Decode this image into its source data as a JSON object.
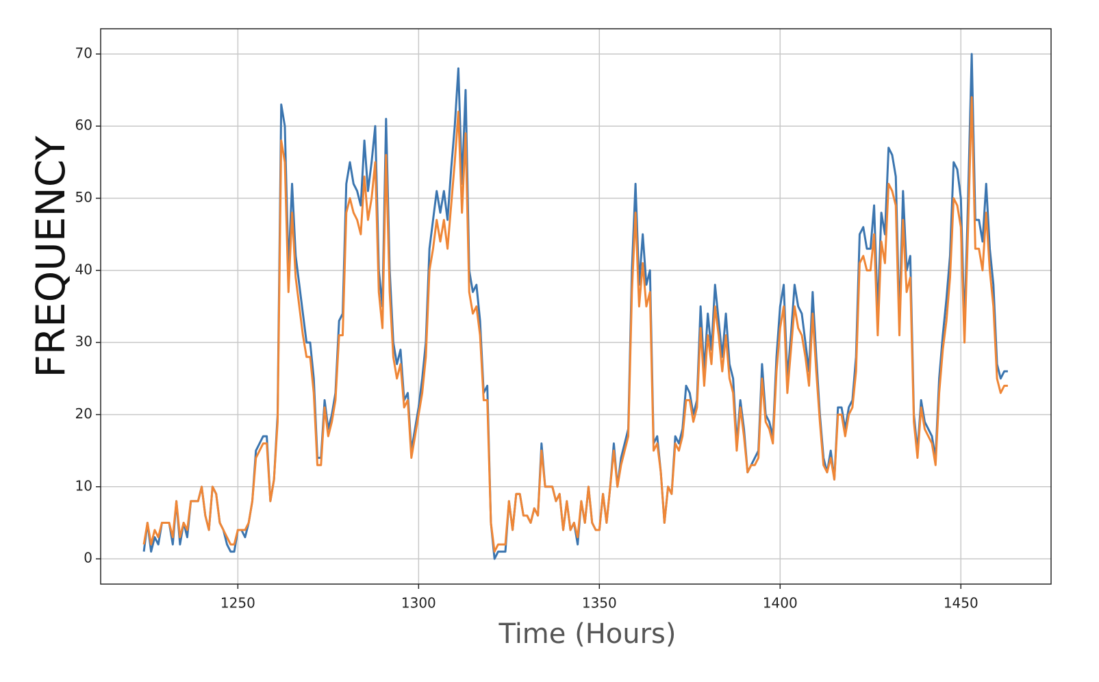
{
  "chart_data": {
    "type": "line",
    "xlabel": "Time (Hours)",
    "ylabel": "FREQUENCY",
    "x": [
      1224,
      1225,
      1226,
      1227,
      1228,
      1229,
      1230,
      1231,
      1232,
      1233,
      1234,
      1235,
      1236,
      1237,
      1238,
      1239,
      1240,
      1241,
      1242,
      1243,
      1244,
      1245,
      1246,
      1247,
      1248,
      1249,
      1250,
      1251,
      1252,
      1253,
      1254,
      1255,
      1256,
      1257,
      1258,
      1259,
      1260,
      1261,
      1262,
      1263,
      1264,
      1265,
      1266,
      1267,
      1268,
      1269,
      1270,
      1271,
      1272,
      1273,
      1274,
      1275,
      1276,
      1277,
      1278,
      1279,
      1280,
      1281,
      1282,
      1283,
      1284,
      1285,
      1286,
      1287,
      1288,
      1289,
      1290,
      1291,
      1292,
      1293,
      1294,
      1295,
      1296,
      1297,
      1298,
      1299,
      1300,
      1301,
      1302,
      1303,
      1304,
      1305,
      1306,
      1307,
      1308,
      1309,
      1310,
      1311,
      1312,
      1313,
      1314,
      1315,
      1316,
      1317,
      1318,
      1319,
      1320,
      1321,
      1322,
      1323,
      1324,
      1325,
      1326,
      1327,
      1328,
      1329,
      1330,
      1331,
      1332,
      1333,
      1334,
      1335,
      1336,
      1337,
      1338,
      1339,
      1340,
      1341,
      1342,
      1343,
      1344,
      1345,
      1346,
      1347,
      1348,
      1349,
      1350,
      1351,
      1352,
      1353,
      1354,
      1355,
      1356,
      1357,
      1358,
      1359,
      1360,
      1361,
      1362,
      1363,
      1364,
      1365,
      1366,
      1367,
      1368,
      1369,
      1370,
      1371,
      1372,
      1373,
      1374,
      1375,
      1376,
      1377,
      1378,
      1379,
      1380,
      1381,
      1382,
      1383,
      1384,
      1385,
      1386,
      1387,
      1388,
      1389,
      1390,
      1391,
      1392,
      1393,
      1394,
      1395,
      1396,
      1397,
      1398,
      1399,
      1400,
      1401,
      1402,
      1403,
      1404,
      1405,
      1406,
      1407,
      1408,
      1409,
      1410,
      1411,
      1412,
      1413,
      1414,
      1415,
      1416,
      1417,
      1418,
      1419,
      1420,
      1421,
      1422,
      1423,
      1424,
      1425,
      1426,
      1427,
      1428,
      1429,
      1430,
      1431,
      1432,
      1433,
      1434,
      1435,
      1436,
      1437,
      1438,
      1439,
      1440,
      1441,
      1442,
      1443,
      1444,
      1445,
      1446,
      1447,
      1448,
      1449,
      1450,
      1451,
      1452,
      1453,
      1454,
      1455,
      1456,
      1457,
      1458,
      1459,
      1460,
      1461,
      1462,
      1463
    ],
    "series": [
      {
        "color": "#3b75af",
        "values": [
          1,
          5,
          1,
          3,
          2,
          5,
          5,
          5,
          2,
          8,
          2,
          5,
          3,
          8,
          8,
          8,
          10,
          6,
          4,
          10,
          9,
          5,
          4,
          2,
          1,
          1,
          4,
          4,
          3,
          5,
          8,
          15,
          16,
          17,
          17,
          8,
          11,
          20,
          63,
          60,
          40,
          52,
          42,
          38,
          34,
          30,
          30,
          25,
          14,
          14,
          22,
          18,
          20,
          23,
          33,
          34,
          52,
          55,
          52,
          51,
          49,
          58,
          51,
          55,
          60,
          40,
          35,
          61,
          40,
          30,
          27,
          29,
          22,
          23,
          15,
          18,
          21,
          25,
          30,
          43,
          47,
          51,
          48,
          51,
          47,
          54,
          60,
          68,
          52,
          65,
          40,
          37,
          38,
          33,
          23,
          24,
          5,
          0,
          1,
          1,
          1,
          8,
          4,
          9,
          9,
          6,
          6,
          5,
          7,
          6,
          16,
          10,
          10,
          10,
          8,
          9,
          4,
          8,
          4,
          5,
          2,
          8,
          5,
          10,
          5,
          4,
          4,
          9,
          5,
          10,
          16,
          10,
          14,
          16,
          18,
          40,
          52,
          38,
          45,
          38,
          40,
          16,
          17,
          12,
          5,
          10,
          9,
          17,
          16,
          18,
          24,
          23,
          20,
          22,
          35,
          26,
          34,
          29,
          38,
          33,
          28,
          34,
          27,
          25,
          16,
          22,
          18,
          12,
          13,
          14,
          15,
          27,
          20,
          19,
          17,
          28,
          35,
          38,
          25,
          31,
          38,
          35,
          34,
          30,
          26,
          37,
          28,
          20,
          14,
          12,
          15,
          11,
          21,
          21,
          18,
          21,
          22,
          28,
          45,
          46,
          43,
          43,
          49,
          34,
          48,
          45,
          57,
          56,
          53,
          33,
          51,
          40,
          42,
          20,
          15,
          22,
          19,
          18,
          17,
          14,
          25,
          31,
          36,
          42,
          55,
          54,
          50,
          32,
          50,
          70,
          47,
          47,
          44,
          52,
          43,
          38,
          27,
          25,
          26,
          26
        ]
      },
      {
        "color": "#ef8636",
        "values": [
          2,
          5,
          2,
          4,
          3,
          5,
          5,
          5,
          3,
          8,
          3,
          5,
          4,
          8,
          8,
          8,
          10,
          6,
          4,
          10,
          9,
          5,
          4,
          3,
          2,
          2,
          4,
          4,
          4,
          5,
          8,
          14,
          15,
          16,
          16,
          8,
          11,
          19,
          58,
          55,
          37,
          48,
          39,
          35,
          31,
          28,
          28,
          23,
          13,
          13,
          21,
          17,
          19,
          22,
          31,
          31,
          48,
          50,
          48,
          47,
          45,
          53,
          47,
          50,
          55,
          37,
          32,
          56,
          37,
          28,
          25,
          27,
          21,
          22,
          14,
          17,
          20,
          23,
          28,
          40,
          43,
          47,
          44,
          47,
          43,
          49,
          55,
          62,
          48,
          59,
          37,
          34,
          35,
          31,
          22,
          22,
          5,
          1,
          2,
          2,
          2,
          8,
          4,
          9,
          9,
          6,
          6,
          5,
          7,
          6,
          15,
          10,
          10,
          10,
          8,
          9,
          4,
          8,
          4,
          5,
          3,
          8,
          5,
          10,
          5,
          4,
          4,
          9,
          5,
          10,
          15,
          10,
          13,
          15,
          17,
          37,
          48,
          35,
          41,
          35,
          37,
          15,
          16,
          12,
          5,
          10,
          9,
          16,
          15,
          17,
          22,
          22,
          19,
          21,
          32,
          24,
          31,
          27,
          35,
          31,
          26,
          31,
          25,
          23,
          15,
          21,
          17,
          12,
          13,
          13,
          14,
          25,
          19,
          18,
          16,
          26,
          32,
          35,
          23,
          29,
          35,
          32,
          31,
          28,
          24,
          34,
          26,
          19,
          13,
          12,
          14,
          11,
          20,
          20,
          17,
          20,
          21,
          26,
          41,
          42,
          40,
          40,
          45,
          31,
          44,
          41,
          52,
          51,
          49,
          31,
          47,
          37,
          39,
          19,
          14,
          21,
          18,
          17,
          16,
          13,
          23,
          29,
          33,
          39,
          50,
          49,
          46,
          30,
          46,
          64,
          43,
          43,
          40,
          48,
          40,
          35,
          25,
          23,
          24,
          24
        ]
      }
    ],
    "xlim": [
      1212.05,
      1474.95
    ],
    "ylim": [
      -3.5,
      73.5
    ],
    "xticks": [
      1250,
      1300,
      1350,
      1400,
      1450
    ],
    "yticks": [
      0,
      10,
      20,
      30,
      40,
      50,
      60,
      70
    ],
    "grid": true
  }
}
